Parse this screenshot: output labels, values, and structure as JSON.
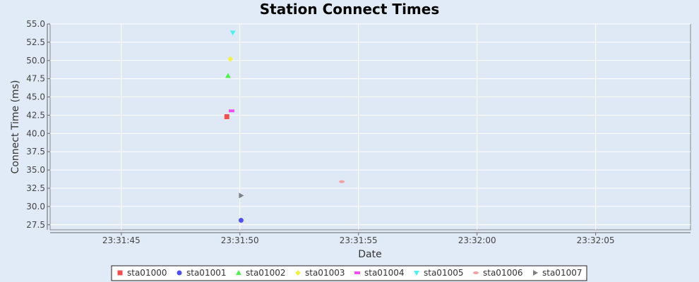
{
  "chart_data": {
    "type": "scatter",
    "title": "Station Connect Times",
    "xlabel": "Date",
    "ylabel": "Connect Time (ms)",
    "x_is_time": true,
    "xlim": [
      "23:31:42",
      "23:32:09"
    ],
    "ylim": [
      26.8,
      55.0
    ],
    "x_ticks": [
      "23:31:45",
      "23:31:50",
      "23:31:55",
      "23:32:00",
      "23:32:05"
    ],
    "y_ticks": [
      27.5,
      30.0,
      32.5,
      35.0,
      37.5,
      40.0,
      42.5,
      45.0,
      47.5,
      50.0,
      52.5,
      55.0
    ],
    "grid": true,
    "legend_position": "bottom",
    "series": [
      {
        "name": "sta01000",
        "marker": "square",
        "color": "#f05050",
        "points": [
          {
            "x": "23:31:49.45",
            "y": 42.3
          }
        ]
      },
      {
        "name": "sta01001",
        "marker": "circle",
        "color": "#5050f0",
        "points": [
          {
            "x": "23:31:50.05",
            "y": 28.1
          }
        ]
      },
      {
        "name": "sta01002",
        "marker": "triangle-up",
        "color": "#50f050",
        "points": [
          {
            "x": "23:31:49.50",
            "y": 47.9
          }
        ]
      },
      {
        "name": "sta01003",
        "marker": "diamond",
        "color": "#f0f050",
        "points": [
          {
            "x": "23:31:49.60",
            "y": 50.2
          }
        ]
      },
      {
        "name": "sta01004",
        "marker": "h-rect",
        "color": "#f050f0",
        "points": [
          {
            "x": "23:31:49.65",
            "y": 43.1
          }
        ]
      },
      {
        "name": "sta01005",
        "marker": "triangle-down",
        "color": "#50f0f0",
        "points": [
          {
            "x": "23:31:49.70",
            "y": 53.8
          }
        ]
      },
      {
        "name": "sta01006",
        "marker": "h-ellipse",
        "color": "#f0a0a0",
        "points": [
          {
            "x": "23:31:54.30",
            "y": 33.4
          }
        ]
      },
      {
        "name": "sta01007",
        "marker": "triangle-right",
        "color": "#808080",
        "points": [
          {
            "x": "23:31:50.05",
            "y": 31.5
          }
        ]
      }
    ]
  }
}
